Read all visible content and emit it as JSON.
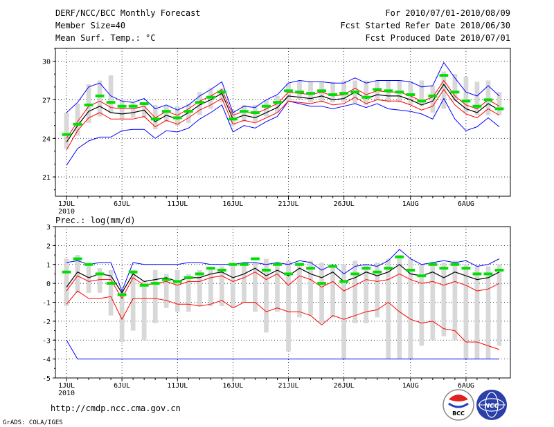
{
  "header": {
    "title": "DERF/NCC/BCC Monthly Forecast",
    "member_size": "Member Size=40",
    "variable1": "Mean Surf. Temp.: °C",
    "period": "For 2010/07/01-2010/08/09",
    "started": "Fcst Started Refer Date 2010/06/30",
    "produced": "Fcst Produced Date 2010/07/01"
  },
  "footer": {
    "url": "http://cmdp.ncc.cma.gov.cn",
    "credit": "GrADS: COLA/IGES",
    "logo_bcc": "BCC",
    "logo_ncc": "NCC"
  },
  "colors": {
    "box": "#d8d8d8",
    "median": "#00e000",
    "mean": "#000000",
    "red": "#ff0000",
    "blue": "#0000ff",
    "grid": "#000000"
  },
  "chart_data": [
    {
      "type": "box",
      "title": "Mean Surf. Temp.: °C",
      "ylim": [
        19.5,
        31
      ],
      "yticks": [
        21,
        24,
        27,
        30
      ],
      "ytick_labels": [
        "21",
        "24",
        "27",
        "30"
      ],
      "xticks": [
        0,
        5,
        10,
        15,
        20,
        25,
        31,
        36
      ],
      "xtick_labels": [
        "1JUL",
        "6JUL",
        "11JUL",
        "16JUL",
        "21JUL",
        "26JUL",
        "1AUG",
        "6AUG"
      ],
      "xsub": "2010",
      "n": 40,
      "box_low": [
        23.2,
        24.2,
        25.2,
        25.7,
        26.0,
        25.5,
        25.6,
        25.6,
        24.7,
        25.3,
        25.0,
        25.2,
        25.8,
        26.3,
        26.8,
        25.0,
        25.3,
        25.3,
        25.7,
        26.0,
        26.8,
        27.0,
        26.8,
        26.8,
        26.8,
        26.8,
        26.7,
        26.6,
        27.0,
        26.8,
        26.8,
        26.6,
        26.5,
        26.0,
        26.3,
        26.9,
        26.0,
        25.8,
        25.8,
        25.8
      ],
      "box_high": [
        26.0,
        26.7,
        28.2,
        28.5,
        28.9,
        27.0,
        26.8,
        26.8,
        26.6,
        26.5,
        26.5,
        26.7,
        27.6,
        27.9,
        27.9,
        26.2,
        26.6,
        26.6,
        27.0,
        27.3,
        28.3,
        28.5,
        28.4,
        28.4,
        28.4,
        28.5,
        28.5,
        28.5,
        28.5,
        28.5,
        28.5,
        28.4,
        28.5,
        28.1,
        29.2,
        29.0,
        28.8,
        28.4,
        28.5,
        27.6
      ],
      "median": [
        24.3,
        25.1,
        26.6,
        27.3,
        26.8,
        26.5,
        26.5,
        26.7,
        25.5,
        26.1,
        25.6,
        26.1,
        26.8,
        27.2,
        27.6,
        25.5,
        26.1,
        26.0,
        26.5,
        26.8,
        27.7,
        27.6,
        27.5,
        27.7,
        27.4,
        27.5,
        27.6,
        27.2,
        27.8,
        27.7,
        27.6,
        27.4,
        26.9,
        27.3,
        28.9,
        27.6,
        26.9,
        26.5,
        27.0,
        26.3
      ],
      "mean": [
        23.7,
        25.0,
        26.1,
        26.5,
        26.0,
        25.9,
        26.0,
        26.2,
        25.3,
        25.8,
        25.5,
        26.0,
        26.6,
        27.0,
        27.5,
        25.5,
        25.8,
        25.6,
        26.0,
        26.4,
        27.3,
        27.2,
        27.1,
        27.3,
        27.0,
        27.1,
        27.6,
        27.1,
        27.4,
        27.3,
        27.3,
        27.0,
        26.6,
        26.9,
        28.2,
        27.0,
        26.3,
        26.0,
        26.7,
        26.2
      ],
      "red_high": [
        24.0,
        25.3,
        26.5,
        26.9,
        26.4,
        26.3,
        26.3,
        26.5,
        25.6,
        26.1,
        25.8,
        26.3,
        26.9,
        27.3,
        27.8,
        25.8,
        26.1,
        25.9,
        26.3,
        26.7,
        27.6,
        27.5,
        27.4,
        27.6,
        27.3,
        27.4,
        27.9,
        27.4,
        27.7,
        27.6,
        27.6,
        27.3,
        26.9,
        27.2,
        28.5,
        27.3,
        26.6,
        26.3,
        27.0,
        26.5
      ],
      "red_low": [
        23.1,
        24.6,
        25.6,
        26.0,
        25.5,
        25.5,
        25.5,
        25.7,
        24.9,
        25.4,
        25.1,
        25.6,
        26.2,
        26.6,
        27.1,
        25.1,
        25.4,
        25.2,
        25.6,
        26.0,
        26.9,
        26.8,
        26.7,
        26.9,
        26.6,
        26.7,
        27.2,
        26.7,
        27.0,
        26.9,
        26.9,
        26.6,
        26.2,
        26.5,
        27.8,
        26.6,
        25.9,
        25.6,
        26.3,
        25.8
      ],
      "max": [
        26.0,
        26.8,
        28.0,
        28.3,
        27.3,
        26.9,
        26.8,
        27.1,
        26.3,
        26.6,
        26.2,
        26.6,
        27.3,
        27.8,
        28.4,
        26.0,
        26.5,
        26.4,
        27.0,
        27.4,
        28.3,
        28.5,
        28.4,
        28.4,
        28.3,
        28.3,
        28.7,
        28.3,
        28.5,
        28.5,
        28.5,
        28.4,
        28.0,
        28.1,
        29.9,
        28.7,
        27.6,
        27.3,
        28.1,
        27.3
      ],
      "min": [
        21.9,
        23.2,
        23.8,
        24.1,
        24.1,
        24.6,
        24.7,
        24.7,
        24.0,
        24.6,
        24.5,
        24.8,
        25.5,
        26.0,
        26.6,
        24.5,
        25.0,
        24.8,
        25.3,
        25.7,
        26.9,
        26.7,
        26.5,
        26.5,
        26.3,
        26.5,
        26.7,
        26.4,
        26.7,
        26.3,
        26.2,
        26.1,
        25.9,
        25.5,
        27.1,
        25.5,
        24.6,
        24.9,
        25.6,
        24.9
      ]
    },
    {
      "type": "box",
      "title": "Prec.: log(mm/d)",
      "ylim": [
        -5,
        3
      ],
      "yticks": [
        -5,
        -4,
        -3,
        -2,
        -1,
        0,
        1,
        2,
        3
      ],
      "ytick_labels": [
        "-5",
        "-4",
        "-3",
        "-2",
        "-1",
        "0",
        "1",
        "2",
        "3"
      ],
      "xticks": [
        0,
        5,
        10,
        15,
        20,
        25,
        31,
        36
      ],
      "xtick_labels": [
        "1JUL",
        "6JUL",
        "11JUL",
        "16JUL",
        "21JUL",
        "26JUL",
        "1AUG",
        "6AUG"
      ],
      "xsub": "2010",
      "n": 40,
      "box_low": [
        -1.2,
        -0.5,
        -0.5,
        -0.5,
        -1.7,
        -3.1,
        -2.5,
        -3.0,
        -2.1,
        -1.3,
        -1.5,
        -1.5,
        -1.2,
        -1.2,
        -1.2,
        -1.3,
        -1.0,
        -1.5,
        -2.6,
        -1.5,
        -3.6,
        -1.8,
        -1.7,
        -2.1,
        -1.8,
        -4.0,
        -2.1,
        -2.1,
        -1.8,
        -4.0,
        -4.0,
        -4.0,
        -3.3,
        -3.0,
        -2.8,
        -3.0,
        -4.0,
        -4.0,
        -4.0,
        -3.3
      ],
      "box_high": [
        1.3,
        1.5,
        1.0,
        0.8,
        0.7,
        -0.4,
        0.7,
        0.1,
        0.7,
        0.5,
        0.7,
        0.5,
        0.7,
        0.8,
        0.9,
        1.0,
        1.0,
        1.1,
        1.3,
        1.1,
        1.2,
        1.1,
        1.2,
        1.1,
        0.9,
        1.0,
        1.2,
        1.0,
        1.1,
        1.3,
        1.5,
        1.3,
        1.0,
        1.1,
        1.1,
        1.2,
        1.0,
        0.9,
        0.9,
        1.0
      ],
      "median": [
        0.6,
        1.3,
        1.0,
        0.5,
        0.0,
        -0.6,
        0.6,
        -0.1,
        0.0,
        0.2,
        0.1,
        0.3,
        0.5,
        0.8,
        0.7,
        1.0,
        1.0,
        1.3,
        0.7,
        1.0,
        0.5,
        1.0,
        0.8,
        0.0,
        0.9,
        0.1,
        0.5,
        0.8,
        0.6,
        0.8,
        1.4,
        0.7,
        0.4,
        1.0,
        0.8,
        1.0,
        0.8,
        0.5,
        0.5,
        0.7
      ],
      "mean": [
        -0.2,
        0.6,
        0.3,
        0.5,
        0.4,
        -0.5,
        0.5,
        0.1,
        0.2,
        0.3,
        0.1,
        0.3,
        0.3,
        0.5,
        0.6,
        0.3,
        0.5,
        0.8,
        0.4,
        0.7,
        0.4,
        0.8,
        0.5,
        0.3,
        0.6,
        0.1,
        0.3,
        0.6,
        0.4,
        0.6,
        1.0,
        0.5,
        0.4,
        0.6,
        0.3,
        0.6,
        0.4,
        0.2,
        0.3,
        0.6
      ],
      "red_high": [
        -0.4,
        0.4,
        0.1,
        0.2,
        0.2,
        -0.8,
        0.3,
        -0.1,
        0.0,
        0.1,
        -0.1,
        0.1,
        0.1,
        0.3,
        0.4,
        0.1,
        0.3,
        0.6,
        0.2,
        0.5,
        -0.1,
        0.4,
        0.2,
        -0.2,
        0.1,
        -0.4,
        -0.1,
        0.2,
        0.1,
        0.2,
        0.5,
        0.2,
        0.0,
        0.1,
        -0.1,
        0.1,
        -0.1,
        -0.4,
        -0.3,
        0.0
      ],
      "red_low": [
        -1.1,
        -0.4,
        -0.8,
        -0.8,
        -0.7,
        -1.9,
        -0.8,
        -0.8,
        -0.8,
        -0.9,
        -1.1,
        -1.1,
        -1.2,
        -1.1,
        -0.9,
        -1.3,
        -1.0,
        -1.0,
        -1.5,
        -1.3,
        -1.5,
        -1.5,
        -1.7,
        -2.2,
        -1.7,
        -1.9,
        -1.7,
        -1.5,
        -1.4,
        -1.0,
        -1.5,
        -1.9,
        -2.1,
        -2.0,
        -2.4,
        -2.5,
        -3.1,
        -3.1,
        -3.3,
        -3.5
      ],
      "max": [
        1.1,
        1.2,
        1.0,
        1.1,
        1.1,
        -0.4,
        1.1,
        1.0,
        1.0,
        1.0,
        1.0,
        1.1,
        1.1,
        1.0,
        1.0,
        1.0,
        1.1,
        1.1,
        1.0,
        1.1,
        1.0,
        1.2,
        1.1,
        0.7,
        1.0,
        0.5,
        0.9,
        1.0,
        0.9,
        1.2,
        1.8,
        1.3,
        1.0,
        1.1,
        1.2,
        1.1,
        1.2,
        0.9,
        1.0,
        1.3
      ],
      "min": [
        -3.0,
        -4.0,
        -4.0,
        -4.0,
        -4.0,
        -4.0,
        -4.0,
        -4.0,
        -4.0,
        -4.0,
        -4.0,
        -4.0,
        -4.0,
        -4.0,
        -4.0,
        -4.0,
        -4.0,
        -4.0,
        -4.0,
        -4.0,
        -4.0,
        -4.0,
        -4.0,
        -4.0,
        -4.0,
        -4.0,
        -4.0,
        -4.0,
        -4.0,
        -4.0,
        -4.0,
        -4.0,
        -4.0,
        -4.0,
        -4.0,
        -4.0,
        -4.0,
        -4.0,
        -4.0,
        -4.0
      ]
    }
  ]
}
